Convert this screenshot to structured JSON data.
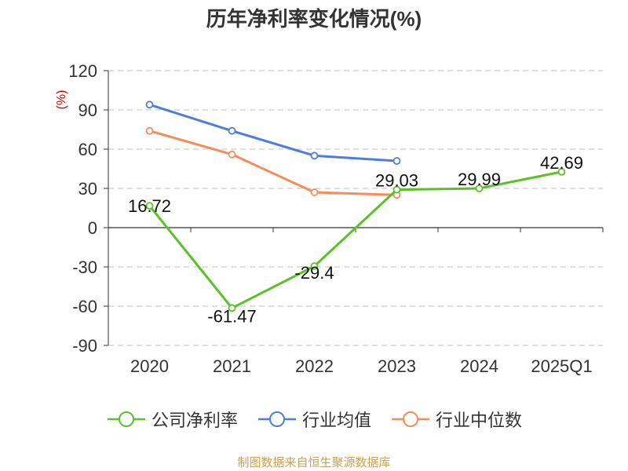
{
  "colors": {
    "company": "#5ac226",
    "industry_avg": "#4e7fd8",
    "industry_median": "#f58d5a",
    "grid": "#cccccc",
    "axis": "#333333",
    "unit_label": "#cc0000",
    "source": "#c8a050"
  },
  "source": "制图数据来自恒生聚源数据库",
  "chart_data": {
    "type": "line",
    "title": "历年净利率变化情况(%)",
    "ylabel": "(%)",
    "xlabel": "",
    "categories": [
      "2020",
      "2021",
      "2022",
      "2023",
      "2024",
      "2025Q1"
    ],
    "ylim": [
      -90,
      120
    ],
    "yticks": [
      120,
      90,
      60,
      30,
      0,
      -30,
      -60,
      -90
    ],
    "grid": true,
    "legend_position": "bottom",
    "series": [
      {
        "name": "公司净利率",
        "color_key": "company",
        "show_labels": true,
        "values": [
          16.72,
          -61.47,
          -29.4,
          29.03,
          29.99,
          42.69
        ],
        "labels": [
          "16.72",
          "-61.47",
          "-29.4",
          "29.03",
          "29.99",
          "42.69"
        ]
      },
      {
        "name": "行业均值",
        "color_key": "industry_avg",
        "show_labels": false,
        "values": [
          94,
          74,
          55,
          51,
          null,
          null
        ]
      },
      {
        "name": "行业中位数",
        "color_key": "industry_median",
        "show_labels": false,
        "values": [
          74,
          56,
          27,
          25,
          null,
          null
        ]
      }
    ]
  }
}
